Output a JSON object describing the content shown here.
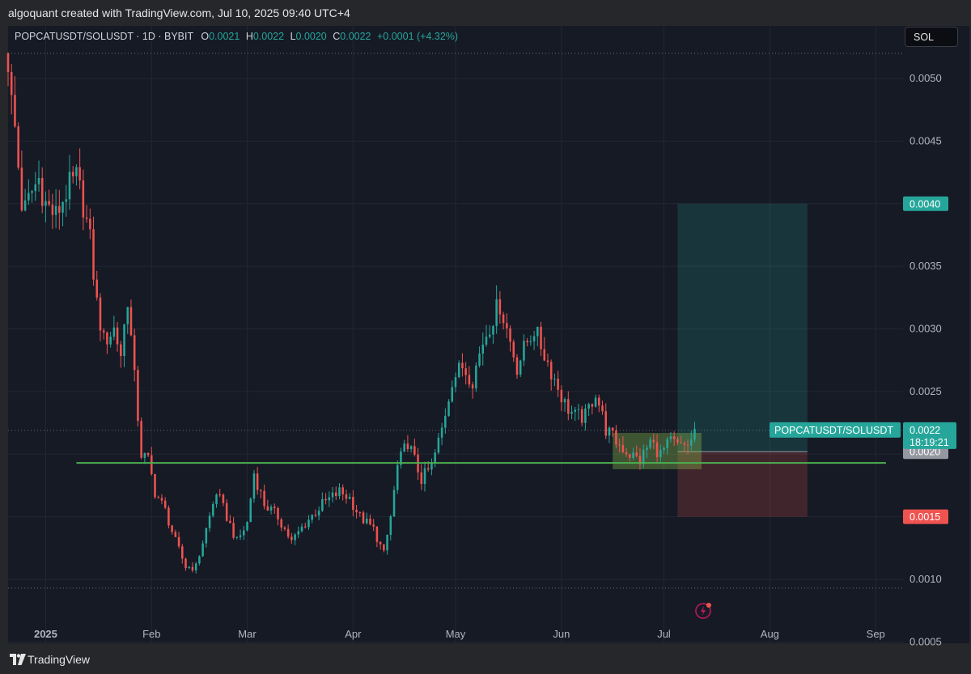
{
  "header": {
    "created_by": "algoquant created with TradingView.com, Jul 10, 2025 09:40 UTC+4"
  },
  "footer": {
    "brand": "TradingView"
  },
  "symbol_info": {
    "symbol": "POPCATUSDT/SOLUSDT · 1D · BYBIT",
    "o_label": "O",
    "o_value": "0.0021",
    "h_label": "H",
    "h_value": "0.0022",
    "l_label": "L",
    "l_value": "0.0020",
    "c_label": "C",
    "c_value": "0.0022",
    "change": "+0.0001 (+4.32%)"
  },
  "currency_button": "SOL",
  "colors": {
    "background": "#161a25",
    "up": "#26a69a",
    "down": "#ef5350",
    "support_line": "#4caf50",
    "text": "#b2b5be"
  },
  "price_labels": {
    "target": "0.0040",
    "last_symbol": "POPCATUSDT/SOLUSDT",
    "last_price": "0.0022",
    "countdown": "18:19:21",
    "entry": "0.0020",
    "stop": "0.0015"
  },
  "chart_data": {
    "type": "candlestick",
    "symbol": "POPCATUSDT/SOLUSDT",
    "interval": "1D",
    "exchange": "BYBIT",
    "y_ticks": [
      "0.0050",
      "0.0045",
      "0.0040",
      "0.0035",
      "0.0030",
      "0.0025",
      "0.0020",
      "0.0015",
      "0.0010",
      "0.0005"
    ],
    "y_tick_values": [
      0.005,
      0.0045,
      0.004,
      0.0035,
      0.003,
      0.0025,
      0.002,
      0.0015,
      0.001,
      0.0005
    ],
    "x_ticks": [
      {
        "label": "2025",
        "date": "2025-01-01"
      },
      {
        "label": "Feb",
        "date": "2025-02-01"
      },
      {
        "label": "Mar",
        "date": "2025-03-01"
      },
      {
        "label": "Apr",
        "date": "2025-04-01"
      },
      {
        "label": "May",
        "date": "2025-05-01"
      },
      {
        "label": "Jun",
        "date": "2025-06-01"
      },
      {
        "label": "Jul",
        "date": "2025-07-01"
      },
      {
        "label": "Aug",
        "date": "2025-08-01"
      },
      {
        "label": "Sep",
        "date": "2025-09-01"
      }
    ],
    "y_range": [
      0.00049,
      0.00542
    ],
    "x_range": [
      "2024-12-21",
      "2025-09-09"
    ],
    "grid": true,
    "start_date": "2024-12-21",
    "close_path": [
      [
        "2024-12-21",
        0.00515
      ],
      [
        "2024-12-22",
        0.0048
      ],
      [
        "2024-12-23",
        0.0046
      ],
      [
        "2024-12-24",
        0.0043
      ],
      [
        "2024-12-25",
        0.004
      ],
      [
        "2024-12-26",
        0.00395
      ],
      [
        "2024-12-28",
        0.0041
      ],
      [
        "2024-12-30",
        0.0042
      ],
      [
        "2025-01-01",
        0.004
      ],
      [
        "2025-01-04",
        0.0039
      ],
      [
        "2025-01-07",
        0.0041
      ],
      [
        "2025-01-10",
        0.0042
      ],
      [
        "2025-01-12",
        0.004
      ],
      [
        "2025-01-14",
        0.0037
      ],
      [
        "2025-01-16",
        0.0032
      ],
      [
        "2025-01-18",
        0.0029
      ],
      [
        "2025-01-21",
        0.003
      ],
      [
        "2025-01-23",
        0.0028
      ],
      [
        "2025-01-25",
        0.00325
      ],
      [
        "2025-01-27",
        0.0026
      ],
      [
        "2025-01-29",
        0.002
      ],
      [
        "2025-01-31",
        0.00195
      ],
      [
        "2025-02-02",
        0.0017
      ],
      [
        "2025-02-05",
        0.00155
      ],
      [
        "2025-02-08",
        0.0013
      ],
      [
        "2025-02-11",
        0.0011
      ],
      [
        "2025-02-14",
        0.0011
      ],
      [
        "2025-02-17",
        0.0014
      ],
      [
        "2025-02-20",
        0.0017
      ],
      [
        "2025-02-23",
        0.0015
      ],
      [
        "2025-02-26",
        0.0013
      ],
      [
        "2025-03-01",
        0.00145
      ],
      [
        "2025-03-03",
        0.00185
      ],
      [
        "2025-03-06",
        0.0016
      ],
      [
        "2025-03-10",
        0.0015
      ],
      [
        "2025-03-14",
        0.0013
      ],
      [
        "2025-03-18",
        0.00145
      ],
      [
        "2025-03-23",
        0.0016
      ],
      [
        "2025-03-28",
        0.0017
      ],
      [
        "2025-03-31",
        0.00165
      ],
      [
        "2025-04-03",
        0.0015
      ],
      [
        "2025-04-07",
        0.0014
      ],
      [
        "2025-04-10",
        0.0012
      ],
      [
        "2025-04-12",
        0.0015
      ],
      [
        "2025-04-14",
        0.0019
      ],
      [
        "2025-04-17",
        0.0021
      ],
      [
        "2025-04-21",
        0.0018
      ],
      [
        "2025-04-24",
        0.0019
      ],
      [
        "2025-04-27",
        0.0022
      ],
      [
        "2025-04-30",
        0.0026
      ],
      [
        "2025-05-03",
        0.0027
      ],
      [
        "2025-05-06",
        0.0026
      ],
      [
        "2025-05-09",
        0.0029
      ],
      [
        "2025-05-12",
        0.0031
      ],
      [
        "2025-05-14",
        0.0032
      ],
      [
        "2025-05-16",
        0.003
      ],
      [
        "2025-05-19",
        0.0027
      ],
      [
        "2025-05-22",
        0.0029
      ],
      [
        "2025-05-24",
        0.003
      ],
      [
        "2025-05-27",
        0.0028
      ],
      [
        "2025-05-30",
        0.0026
      ],
      [
        "2025-06-02",
        0.0024
      ],
      [
        "2025-06-05",
        0.0023
      ],
      [
        "2025-06-08",
        0.0023
      ],
      [
        "2025-06-11",
        0.0025
      ],
      [
        "2025-06-14",
        0.0022
      ],
      [
        "2025-06-17",
        0.0021
      ],
      [
        "2025-06-21",
        0.002
      ],
      [
        "2025-06-24",
        0.00195
      ],
      [
        "2025-06-27",
        0.0021
      ],
      [
        "2025-06-30",
        0.002
      ],
      [
        "2025-07-03",
        0.0021
      ],
      [
        "2025-07-06",
        0.00205
      ],
      [
        "2025-07-09",
        0.0021
      ],
      [
        "2025-07-10",
        0.0022
      ]
    ],
    "support_level": 0.00193,
    "support_range": [
      "2025-01-10",
      "2025-09-04"
    ],
    "consolidation_box": {
      "from": "2025-06-16",
      "to": "2025-07-12",
      "high": 0.00217,
      "low": 0.00188
    },
    "position": {
      "from": "2025-07-05",
      "to": "2025-08-12",
      "entry": 0.00202,
      "target": 0.004,
      "stop": 0.0015
    },
    "dotted_levels": [
      0.0052,
      0.00219,
      0.00093
    ],
    "timeline_marker_date": "2025-07-12"
  }
}
